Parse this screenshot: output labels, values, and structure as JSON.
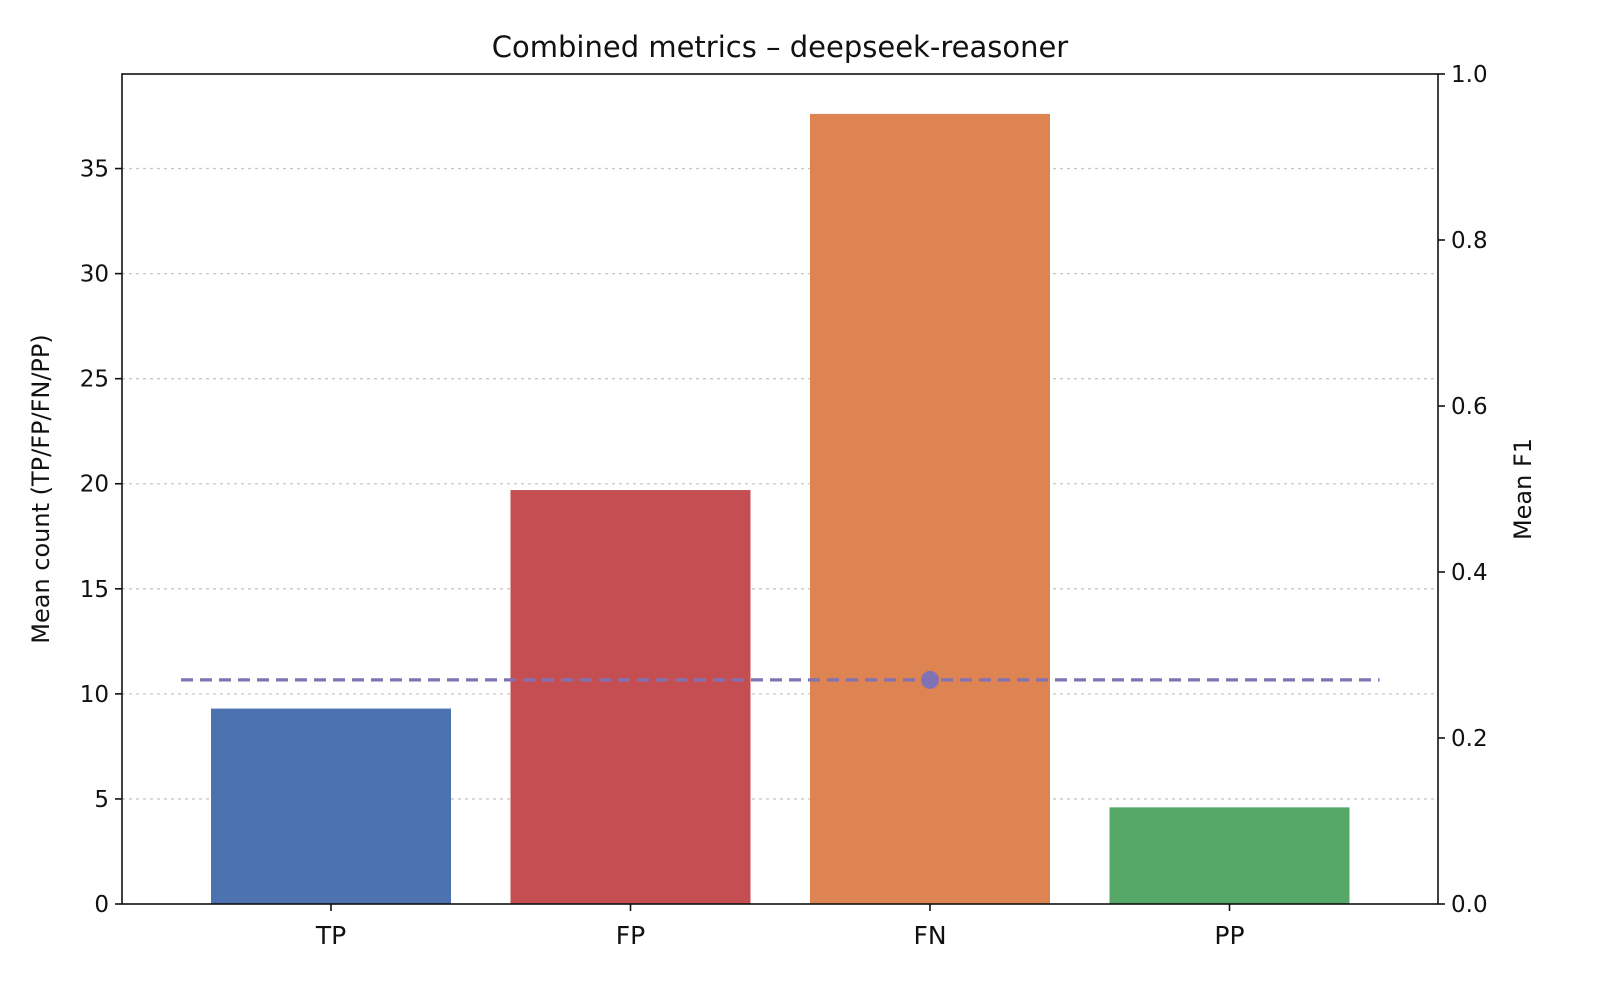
{
  "chart_data": {
    "type": "bar",
    "title": "Combined metrics – deepseek-reasoner",
    "categories": [
      "TP",
      "FP",
      "FN",
      "PP"
    ],
    "values": [
      9.3,
      19.7,
      37.6,
      4.6
    ],
    "colors": [
      "#4c72b0",
      "#c44e52",
      "#dd8452",
      "#55a868"
    ],
    "ylabel": "Mean count (TP/FP/FN/PP)",
    "ylim": [
      0,
      39.5
    ],
    "yticks": [
      0,
      5,
      10,
      15,
      20,
      25,
      30,
      35
    ],
    "y2label": "Mean F1",
    "y2lim": [
      0,
      1.0
    ],
    "y2ticks": [
      "0.0",
      "0.2",
      "0.4",
      "0.6",
      "0.8",
      "1.0"
    ],
    "f1": {
      "value": 0.27,
      "marker_category": "FN",
      "color": "#8172b3",
      "line_style": "dashed"
    },
    "grid": "y-dotted"
  }
}
